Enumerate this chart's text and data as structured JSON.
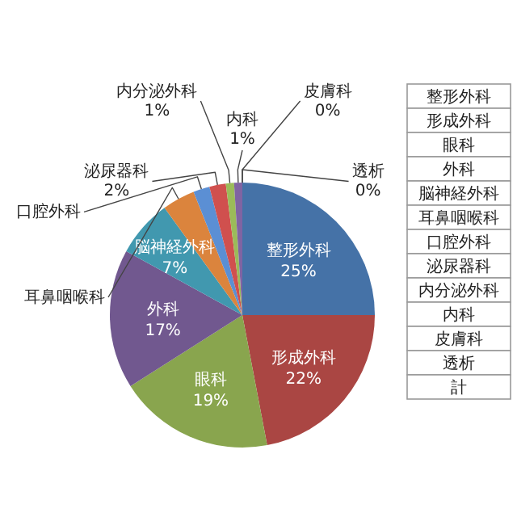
{
  "chart_data": {
    "type": "pie",
    "categories": [
      "整形外科",
      "形成外科",
      "眼科",
      "外科",
      "脳神経外科",
      "耳鼻咽喉科",
      "口腔外科",
      "泌尿器科",
      "内分泌外科",
      "内科",
      "皮膚科",
      "透析"
    ],
    "values": [
      25,
      22,
      19,
      17,
      7,
      4,
      2,
      2,
      1,
      1,
      0,
      0
    ],
    "value_labels": [
      "25%",
      "22%",
      "19%",
      "17%",
      "7%",
      null,
      null,
      "2%",
      "1%",
      "1%",
      "0%",
      "0%"
    ],
    "colors": [
      "#4572a7",
      "#aa4643",
      "#89a54e",
      "#71588f",
      "#4198af",
      "#db843d",
      "#5b8fd4",
      "#d0504e",
      "#9bbb59",
      "#8064a2",
      "#4bacc6",
      "#f79646"
    ],
    "annotations": [
      "整形外科",
      "形成外科",
      "眼科",
      "外科",
      "脳神経外科",
      "耳鼻咽喉科",
      "口腔外科",
      "泌尿器科",
      "内分泌外科",
      "内科",
      "皮膚科",
      "透析",
      "計"
    ]
  }
}
